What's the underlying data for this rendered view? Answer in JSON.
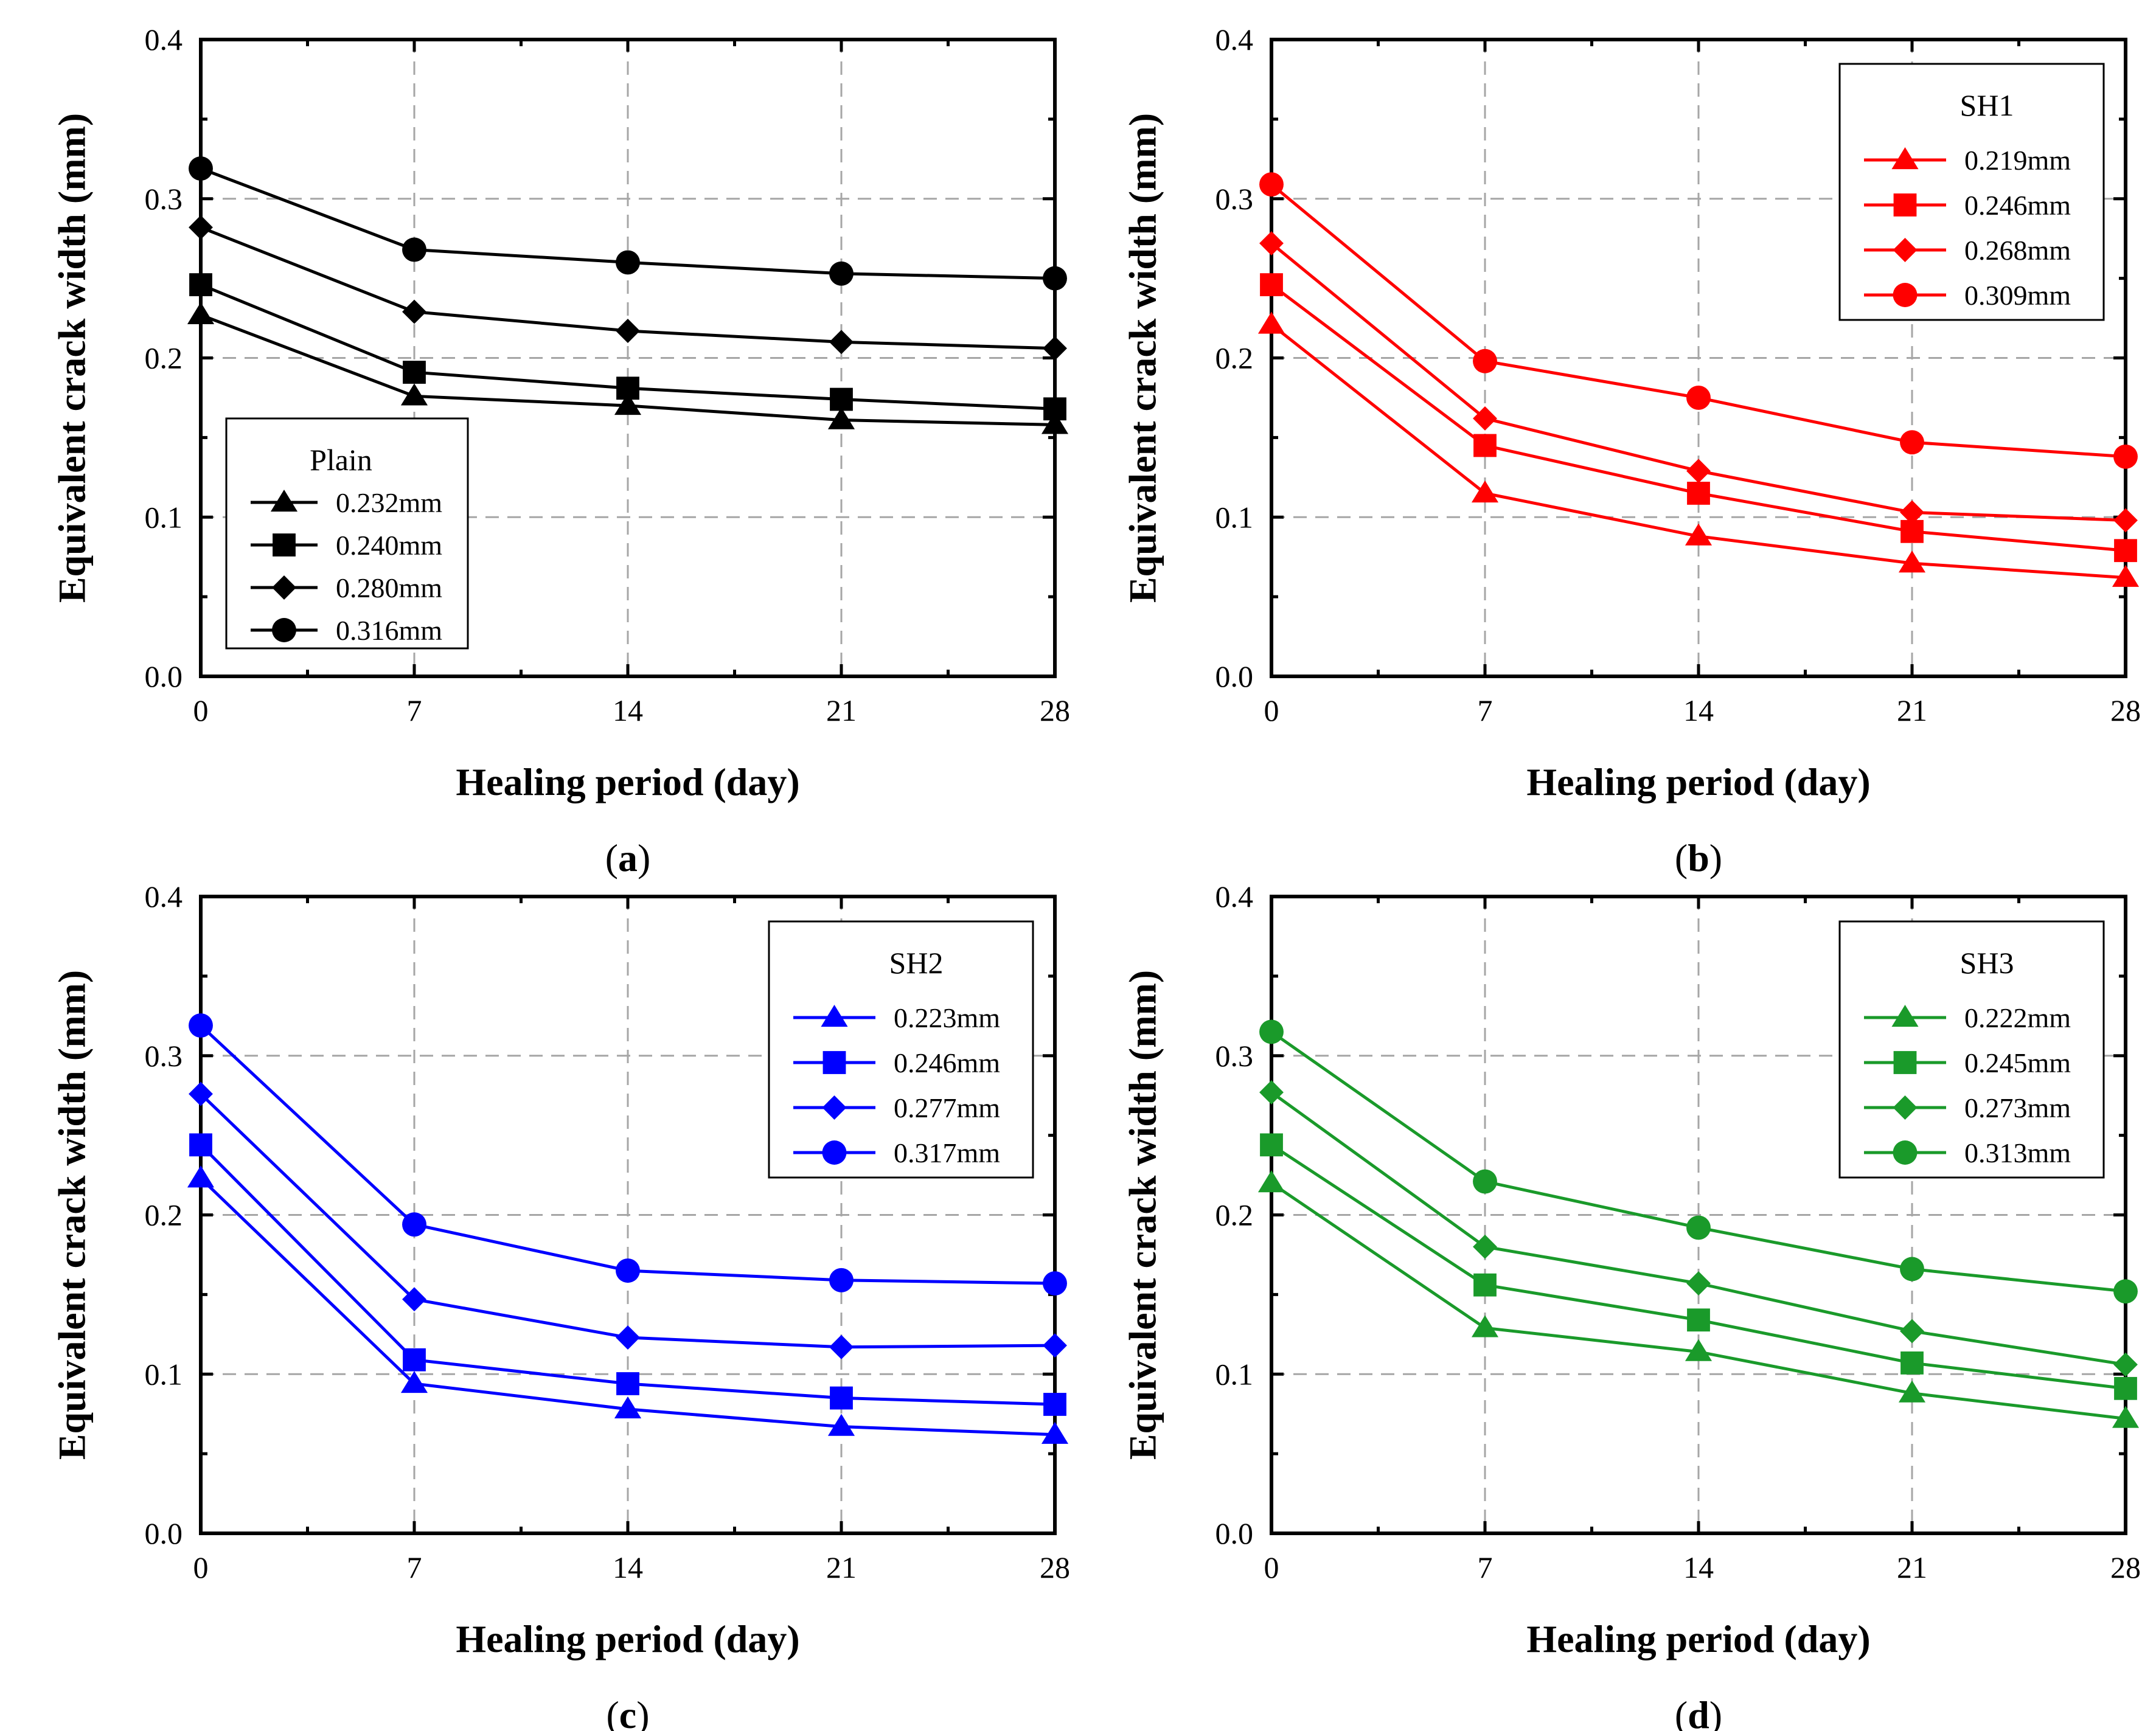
{
  "chart_data": [
    {
      "type": "line",
      "panel_label": "a",
      "xlabel": "Healing period (day)",
      "ylabel": "Equivalent crack width (mm)",
      "x": [
        0,
        7,
        14,
        21,
        28
      ],
      "xticks": [
        "0",
        "7",
        "14",
        "21",
        "28"
      ],
      "yticks": [
        "0.0",
        "0.1",
        "0.2",
        "0.3",
        "0.4"
      ],
      "xlim": [
        0,
        28
      ],
      "ylim": [
        0,
        0.4
      ],
      "grid": "dashed",
      "color": "#000000",
      "legend": {
        "title": "Plain",
        "placement": "bottom-left"
      },
      "series": [
        {
          "name": "0.232mm",
          "marker": "triangle",
          "values": [
            0.227,
            0.176,
            0.17,
            0.161,
            0.158
          ]
        },
        {
          "name": "0.240mm",
          "marker": "square",
          "values": [
            0.246,
            0.191,
            0.181,
            0.174,
            0.168
          ]
        },
        {
          "name": "0.280mm",
          "marker": "diamond",
          "values": [
            0.282,
            0.229,
            0.217,
            0.21,
            0.206
          ]
        },
        {
          "name": "0.316mm",
          "marker": "circle",
          "values": [
            0.319,
            0.268,
            0.26,
            0.253,
            0.25
          ]
        }
      ]
    },
    {
      "type": "line",
      "panel_label": "b",
      "xlabel": "Healing period (day)",
      "ylabel": "Equivalent crack width (mm)",
      "x": [
        0,
        7,
        14,
        21,
        28
      ],
      "xticks": [
        "0",
        "7",
        "14",
        "21",
        "28"
      ],
      "yticks": [
        "0.0",
        "0.1",
        "0.2",
        "0.3",
        "0.4"
      ],
      "xlim": [
        0,
        28
      ],
      "ylim": [
        0,
        0.4
      ],
      "grid": "dashed",
      "color": "#ff0000",
      "legend": {
        "title": "SH1",
        "placement": "top-right"
      },
      "series": [
        {
          "name": "0.219mm",
          "marker": "triangle",
          "values": [
            0.221,
            0.115,
            0.088,
            0.071,
            0.062
          ]
        },
        {
          "name": "0.246mm",
          "marker": "square",
          "values": [
            0.246,
            0.145,
            0.115,
            0.091,
            0.079
          ]
        },
        {
          "name": "0.268mm",
          "marker": "diamond",
          "values": [
            0.272,
            0.162,
            0.129,
            0.103,
            0.098
          ]
        },
        {
          "name": "0.309mm",
          "marker": "circle",
          "values": [
            0.309,
            0.198,
            0.175,
            0.147,
            0.138
          ]
        }
      ]
    },
    {
      "type": "line",
      "panel_label": "c",
      "xlabel": "Healing period (day)",
      "ylabel": "Equivalent crack width (mm)",
      "x": [
        0,
        7,
        14,
        21,
        28
      ],
      "xticks": [
        "0",
        "7",
        "14",
        "21",
        "28"
      ],
      "yticks": [
        "0.0",
        "0.1",
        "0.2",
        "0.3",
        "0.4"
      ],
      "xlim": [
        0,
        28
      ],
      "ylim": [
        0,
        0.4
      ],
      "grid": "dashed",
      "color": "#0000ff",
      "legend": {
        "title": "SH2",
        "placement": "top-right"
      },
      "series": [
        {
          "name": "0.223mm",
          "marker": "triangle",
          "values": [
            0.223,
            0.094,
            0.078,
            0.067,
            0.062
          ]
        },
        {
          "name": "0.246mm",
          "marker": "square",
          "values": [
            0.244,
            0.109,
            0.094,
            0.085,
            0.081
          ]
        },
        {
          "name": "0.277mm",
          "marker": "diamond",
          "values": [
            0.276,
            0.147,
            0.123,
            0.117,
            0.118
          ]
        },
        {
          "name": "0.317mm",
          "marker": "circle",
          "values": [
            0.319,
            0.194,
            0.165,
            0.159,
            0.157
          ]
        }
      ]
    },
    {
      "type": "line",
      "panel_label": "d",
      "xlabel": "Healing period (day)",
      "ylabel": "Equivalent crack width (mm)",
      "x": [
        0,
        7,
        14,
        21,
        28
      ],
      "xticks": [
        "0",
        "7",
        "14",
        "21",
        "28"
      ],
      "yticks": [
        "0.0",
        "0.1",
        "0.2",
        "0.3",
        "0.4"
      ],
      "xlim": [
        0,
        28
      ],
      "ylim": [
        0,
        0.4
      ],
      "grid": "dashed",
      "color": "#1a9a2a",
      "legend": {
        "title": "SH3",
        "placement": "top-right"
      },
      "series": [
        {
          "name": "0.222mm",
          "marker": "triangle",
          "values": [
            0.22,
            0.129,
            0.114,
            0.088,
            0.072
          ]
        },
        {
          "name": "0.245mm",
          "marker": "square",
          "values": [
            0.244,
            0.156,
            0.134,
            0.107,
            0.091
          ]
        },
        {
          "name": "0.273mm",
          "marker": "diamond",
          "values": [
            0.277,
            0.18,
            0.157,
            0.127,
            0.106
          ]
        },
        {
          "name": "0.313mm",
          "marker": "circle",
          "values": [
            0.315,
            0.221,
            0.192,
            0.166,
            0.152
          ]
        }
      ]
    }
  ]
}
